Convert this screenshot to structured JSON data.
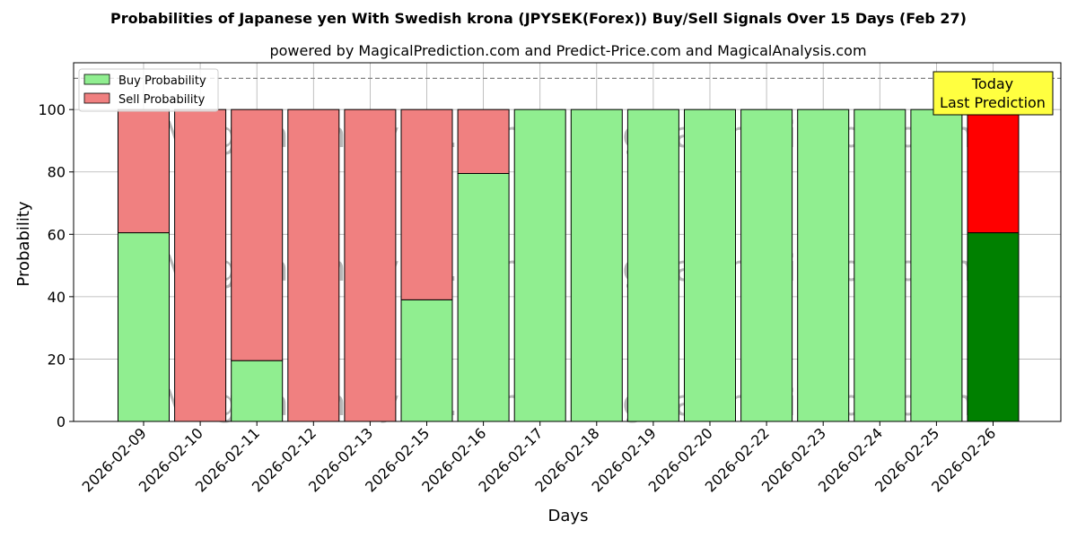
{
  "chart_data": {
    "type": "bar",
    "stacked": true,
    "title": "Probabilities of Japanese yen With Swedish krona (JPYSEK(Forex)) Buy/Sell Signals Over 15 Days (Feb 27)",
    "subtitle": "powered by MagicalPrediction.com and Predict-Price.com and MagicalAnalysis.com",
    "xlabel": "Days",
    "ylabel": "Probability",
    "ylim": [
      0,
      115
    ],
    "yticks": [
      0,
      20,
      40,
      60,
      80,
      100
    ],
    "grid": true,
    "legend_placement": "top-left",
    "reference_line": 110,
    "categories": [
      "2026-02-09",
      "2026-02-10",
      "2026-02-11",
      "2026-02-12",
      "2026-02-13",
      "2026-02-15",
      "2026-02-16",
      "2026-02-17",
      "2026-02-18",
      "2026-02-19",
      "2026-02-20",
      "2026-02-22",
      "2026-02-23",
      "2026-02-24",
      "2026-02-25",
      "2026-02-26"
    ],
    "series": [
      {
        "name": "Buy Probability",
        "color": "#90ee90",
        "highlight_color": "#008000",
        "values": [
          60.5,
          0,
          19.5,
          0,
          0,
          39,
          79.5,
          100,
          100,
          100,
          100,
          100,
          100,
          100,
          100,
          60.5
        ]
      },
      {
        "name": "Sell Probability",
        "color": "#f08080",
        "highlight_color": "#ff0000",
        "values": [
          39.5,
          100,
          80.5,
          100,
          100,
          61,
          20.5,
          0,
          0,
          0,
          0,
          0,
          0,
          0,
          0,
          39.5
        ]
      }
    ],
    "highlight_index": 15,
    "annotation": {
      "line1": "Today",
      "line2": "Last Prediction",
      "bg_color": "#ffff40"
    },
    "watermark": "MagicalAnalysis.com   MagicalPrediction.com"
  }
}
